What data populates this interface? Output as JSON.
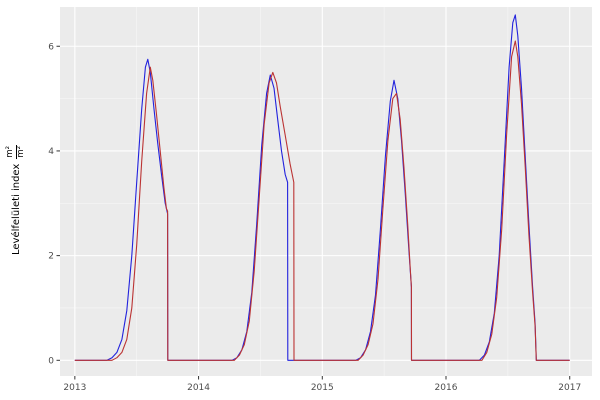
{
  "chart_data": {
    "type": "line",
    "title": "",
    "xlabel": "",
    "ylabel": "Levélfelületi index m²/m²",
    "ylabel_parts": {
      "text": "Levélfelületi index",
      "frac_num": "m²",
      "frac_den": "m²"
    },
    "xlim": [
      2012.88,
      2017.18
    ],
    "ylim": [
      -0.3,
      6.75
    ],
    "x_major_ticks": [
      2013,
      2014,
      2015,
      2016,
      2017
    ],
    "x_minor_ticks": [
      2013.5,
      2014.5,
      2015.5,
      2016.5
    ],
    "y_major_ticks": [
      0,
      2,
      4,
      6
    ],
    "y_minor_ticks": [
      1,
      3,
      5
    ],
    "grid": "on",
    "legend_position": "none",
    "panel_bg": "#EBEBEB",
    "grid_major_color": "#FFFFFF",
    "grid_minor_color": "#F7F7F7",
    "axis_text_color": "#4D4D4D",
    "tick_mark_color": "#333333",
    "series": [
      {
        "name": "blue-line",
        "color": "#2222DD",
        "points": [
          [
            2013.0,
            0
          ],
          [
            2013.26,
            0
          ],
          [
            2013.3,
            0.05
          ],
          [
            2013.34,
            0.15
          ],
          [
            2013.38,
            0.4
          ],
          [
            2013.42,
            0.95
          ],
          [
            2013.46,
            2.0
          ],
          [
            2013.5,
            3.4
          ],
          [
            2013.54,
            4.8
          ],
          [
            2013.57,
            5.6
          ],
          [
            2013.59,
            5.75
          ],
          [
            2013.61,
            5.5
          ],
          [
            2013.64,
            4.8
          ],
          [
            2013.67,
            4.15
          ],
          [
            2013.7,
            3.55
          ],
          [
            2013.73,
            3.0
          ],
          [
            2013.75,
            2.8
          ],
          [
            2013.751,
            0
          ],
          [
            2014.27,
            0
          ],
          [
            2014.31,
            0.05
          ],
          [
            2014.35,
            0.2
          ],
          [
            2014.39,
            0.55
          ],
          [
            2014.43,
            1.3
          ],
          [
            2014.47,
            2.6
          ],
          [
            2014.51,
            4.1
          ],
          [
            2014.55,
            5.1
          ],
          [
            2014.58,
            5.45
          ],
          [
            2014.61,
            5.2
          ],
          [
            2014.64,
            4.6
          ],
          [
            2014.67,
            4.0
          ],
          [
            2014.7,
            3.55
          ],
          [
            2014.72,
            3.4
          ],
          [
            2014.721,
            0
          ],
          [
            2015.27,
            0
          ],
          [
            2015.31,
            0.05
          ],
          [
            2015.35,
            0.2
          ],
          [
            2015.39,
            0.55
          ],
          [
            2015.43,
            1.25
          ],
          [
            2015.47,
            2.5
          ],
          [
            2015.51,
            3.9
          ],
          [
            2015.55,
            4.95
          ],
          [
            2015.58,
            5.35
          ],
          [
            2015.61,
            5.0
          ],
          [
            2015.64,
            4.2
          ],
          [
            2015.67,
            3.2
          ],
          [
            2015.7,
            2.1
          ],
          [
            2015.72,
            1.4
          ],
          [
            2015.721,
            0
          ],
          [
            2016.27,
            0
          ],
          [
            2016.31,
            0.1
          ],
          [
            2016.35,
            0.35
          ],
          [
            2016.39,
            0.9
          ],
          [
            2016.43,
            2.0
          ],
          [
            2016.47,
            3.8
          ],
          [
            2016.51,
            5.6
          ],
          [
            2016.54,
            6.45
          ],
          [
            2016.56,
            6.6
          ],
          [
            2016.58,
            6.2
          ],
          [
            2016.61,
            5.2
          ],
          [
            2016.64,
            3.9
          ],
          [
            2016.67,
            2.6
          ],
          [
            2016.7,
            1.4
          ],
          [
            2016.72,
            0.7
          ],
          [
            2016.73,
            0
          ],
          [
            2017.0,
            0
          ]
        ]
      },
      {
        "name": "red-line",
        "color": "#BB3333",
        "points": [
          [
            2013.0,
            0
          ],
          [
            2013.3,
            0
          ],
          [
            2013.34,
            0.05
          ],
          [
            2013.38,
            0.15
          ],
          [
            2013.42,
            0.4
          ],
          [
            2013.46,
            1.0
          ],
          [
            2013.5,
            2.2
          ],
          [
            2013.54,
            3.8
          ],
          [
            2013.58,
            5.1
          ],
          [
            2013.61,
            5.6
          ],
          [
            2013.63,
            5.35
          ],
          [
            2013.66,
            4.7
          ],
          [
            2013.69,
            4.0
          ],
          [
            2013.72,
            3.3
          ],
          [
            2013.74,
            2.9
          ],
          [
            2013.75,
            2.85
          ],
          [
            2013.751,
            0
          ],
          [
            2014.29,
            0
          ],
          [
            2014.33,
            0.1
          ],
          [
            2014.37,
            0.3
          ],
          [
            2014.41,
            0.75
          ],
          [
            2014.45,
            1.7
          ],
          [
            2014.49,
            3.1
          ],
          [
            2014.53,
            4.5
          ],
          [
            2014.57,
            5.3
          ],
          [
            2014.6,
            5.5
          ],
          [
            2014.63,
            5.3
          ],
          [
            2014.66,
            4.85
          ],
          [
            2014.7,
            4.3
          ],
          [
            2014.74,
            3.75
          ],
          [
            2014.77,
            3.4
          ],
          [
            2014.771,
            0
          ],
          [
            2015.29,
            0
          ],
          [
            2015.33,
            0.1
          ],
          [
            2015.37,
            0.3
          ],
          [
            2015.41,
            0.7
          ],
          [
            2015.45,
            1.55
          ],
          [
            2015.49,
            2.9
          ],
          [
            2015.53,
            4.2
          ],
          [
            2015.57,
            5.0
          ],
          [
            2015.6,
            5.1
          ],
          [
            2015.63,
            4.6
          ],
          [
            2015.66,
            3.7
          ],
          [
            2015.69,
            2.6
          ],
          [
            2015.71,
            1.8
          ],
          [
            2015.72,
            1.4
          ],
          [
            2015.721,
            0
          ],
          [
            2016.29,
            0
          ],
          [
            2016.33,
            0.15
          ],
          [
            2016.37,
            0.5
          ],
          [
            2016.41,
            1.2
          ],
          [
            2016.45,
            2.5
          ],
          [
            2016.49,
            4.3
          ],
          [
            2016.53,
            5.8
          ],
          [
            2016.56,
            6.1
          ],
          [
            2016.58,
            5.8
          ],
          [
            2016.61,
            4.9
          ],
          [
            2016.64,
            3.7
          ],
          [
            2016.67,
            2.4
          ],
          [
            2016.7,
            1.3
          ],
          [
            2016.72,
            0.65
          ],
          [
            2016.73,
            0
          ],
          [
            2017.0,
            0
          ]
        ]
      }
    ]
  }
}
